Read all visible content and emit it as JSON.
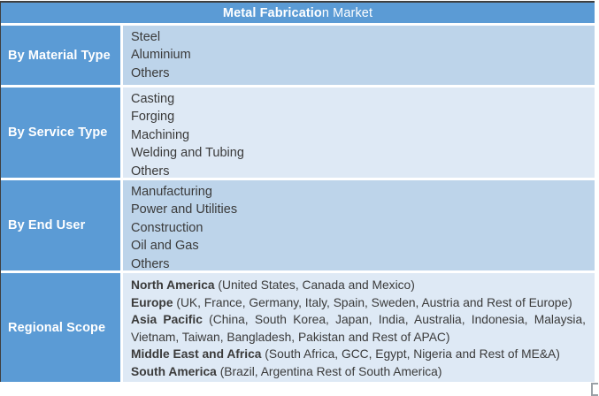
{
  "title": {
    "bold_part": "Metal Fabricatio",
    "regular_part": "n Market"
  },
  "rows": [
    {
      "label": "By Material Type",
      "items": [
        "Steel",
        "Aluminium",
        "Others"
      ]
    },
    {
      "label": "By Service Type",
      "items": [
        "Casting",
        "Forging",
        "Machining",
        "Welding and Tubing",
        "Others"
      ]
    },
    {
      "label": "By End User",
      "items": [
        "Manufacturing",
        "Power and Utilities",
        "Construction",
        "Oil and Gas",
        "Others"
      ]
    },
    {
      "label": "Regional Scope",
      "regions": [
        {
          "name": "North America",
          "detail": " (United States, Canada and Mexico)"
        },
        {
          "name": "Europe",
          "detail": " (UK, France, Germany, Italy, Spain, Sweden, Austria and Rest of Europe)"
        },
        {
          "name": "Asia Pacific",
          "detail": " (China, South Korea, Japan, India, Australia, Indonesia, Malaysia, Vietnam, Taiwan, Bangladesh, Pakistan and Rest of APAC)"
        },
        {
          "name": "Middle East and Africa",
          "detail": " (South Africa, GCC, Egypt, Nigeria and Rest of ME&A)"
        },
        {
          "name": "South America",
          "detail": " (Brazil, Argentina Rest of South America)"
        }
      ]
    }
  ],
  "colors": {
    "header_blue": "#5b9bd5",
    "row_shade_dark": "#bdd4ea",
    "row_shade_light": "#dee9f5",
    "outer_border": "#3f3f3f",
    "text": "#3a3a3a"
  }
}
